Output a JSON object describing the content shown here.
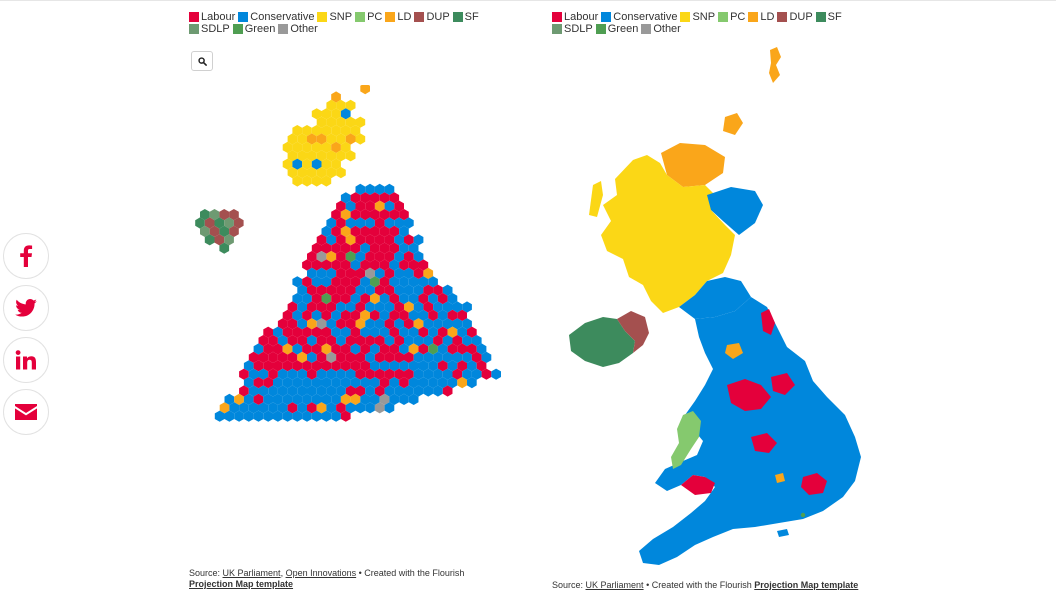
{
  "legend": {
    "items": [
      {
        "label": "Labour",
        "color": "#e4003b"
      },
      {
        "label": "Conservative",
        "color": "#0087dc"
      },
      {
        "label": "SNP",
        "color": "#fbd716"
      },
      {
        "label": "PC",
        "color": "#85c96e"
      },
      {
        "label": "LD",
        "color": "#faa61a"
      },
      {
        "label": "DUP",
        "color": "#a4504f"
      },
      {
        "label": "SF",
        "color": "#3d8b5d"
      },
      {
        "label": "SDLP",
        "color": "#6e9a72"
      },
      {
        "label": "Green",
        "color": "#4f9e52"
      },
      {
        "label": "Other",
        "color": "#999999"
      }
    ]
  },
  "share": {
    "buttons": [
      {
        "name": "facebook-icon",
        "color": "#e4003b"
      },
      {
        "name": "twitter-icon",
        "color": "#e4003b"
      },
      {
        "name": "linkedin-icon",
        "color": "#e4003b"
      },
      {
        "name": "email-icon",
        "color": "#e4003b"
      }
    ]
  },
  "zoom": {
    "icon": "search-icon"
  },
  "source_left": {
    "prefix": "Source: ",
    "link1": "UK Parliament",
    "sep": ", ",
    "link2": "Open Innovations",
    "middle": " • Created with the Flourish",
    "template": "Projection Map template"
  },
  "source_right": {
    "prefix": "Source: ",
    "link1": "UK Parliament",
    "middle": " • Created with the Flourish ",
    "template": "Projection Map template"
  }
}
